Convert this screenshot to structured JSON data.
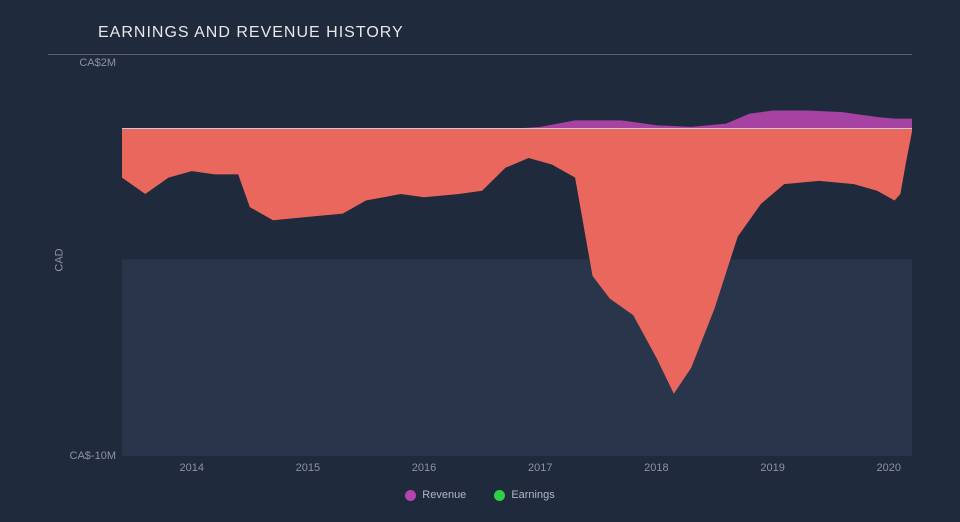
{
  "title": "EARNINGS AND REVENUE HISTORY",
  "background_color": "#1f2a3c",
  "band_color": "#28354a",
  "text_color": "#e8e8e8",
  "muted_text": "#8a93a3",
  "zero_line_color": "#c5cbd4",
  "y_axis": {
    "label": "CAD",
    "min": -10,
    "max": 2,
    "ticks": [
      {
        "v": 2,
        "label": "CA$2M"
      },
      {
        "v": -10,
        "label": "CA$-10M"
      }
    ]
  },
  "x_axis": {
    "min": 2013.4,
    "max": 2020.2,
    "ticks": [
      2014,
      2015,
      2016,
      2017,
      2018,
      2019,
      2020
    ]
  },
  "series": {
    "revenue": {
      "label": "Revenue",
      "color": "#b445ad",
      "fill_opacity": 0.9,
      "points": [
        [
          2013.4,
          0
        ],
        [
          2014.0,
          0
        ],
        [
          2015.0,
          0
        ],
        [
          2016.0,
          0
        ],
        [
          2016.8,
          0
        ],
        [
          2017.0,
          0.05
        ],
        [
          2017.3,
          0.25
        ],
        [
          2017.7,
          0.25
        ],
        [
          2018.0,
          0.1
        ],
        [
          2018.3,
          0.05
        ],
        [
          2018.6,
          0.15
        ],
        [
          2018.8,
          0.45
        ],
        [
          2019.0,
          0.55
        ],
        [
          2019.3,
          0.55
        ],
        [
          2019.6,
          0.5
        ],
        [
          2019.9,
          0.35
        ],
        [
          2020.05,
          0.3
        ],
        [
          2020.2,
          0.3
        ]
      ]
    },
    "earnings": {
      "label": "Earnings",
      "color": "#2fcf4a",
      "negative_fill": "#f46a5f",
      "fill_opacity": 0.95,
      "points": [
        [
          2013.4,
          -1.5
        ],
        [
          2013.6,
          -2.0
        ],
        [
          2013.8,
          -1.5
        ],
        [
          2014.0,
          -1.3
        ],
        [
          2014.2,
          -1.4
        ],
        [
          2014.4,
          -1.4
        ],
        [
          2014.5,
          -2.4
        ],
        [
          2014.7,
          -2.8
        ],
        [
          2015.0,
          -2.7
        ],
        [
          2015.3,
          -2.6
        ],
        [
          2015.5,
          -2.2
        ],
        [
          2015.8,
          -2.0
        ],
        [
          2016.0,
          -2.1
        ],
        [
          2016.3,
          -2.0
        ],
        [
          2016.5,
          -1.9
        ],
        [
          2016.7,
          -1.2
        ],
        [
          2016.9,
          -0.9
        ],
        [
          2017.1,
          -1.1
        ],
        [
          2017.3,
          -1.5
        ],
        [
          2017.45,
          -4.5
        ],
        [
          2017.6,
          -5.2
        ],
        [
          2017.8,
          -5.7
        ],
        [
          2018.0,
          -7.0
        ],
        [
          2018.15,
          -8.1
        ],
        [
          2018.3,
          -7.3
        ],
        [
          2018.5,
          -5.5
        ],
        [
          2018.7,
          -3.3
        ],
        [
          2018.9,
          -2.3
        ],
        [
          2019.1,
          -1.7
        ],
        [
          2019.4,
          -1.6
        ],
        [
          2019.7,
          -1.7
        ],
        [
          2019.9,
          -1.9
        ],
        [
          2020.05,
          -2.2
        ],
        [
          2020.1,
          -2.0
        ],
        [
          2020.15,
          -1.0
        ],
        [
          2020.2,
          -0.1
        ]
      ]
    }
  },
  "legend": [
    {
      "key": "revenue",
      "label": "Revenue",
      "color": "#b445ad"
    },
    {
      "key": "earnings",
      "label": "Earnings",
      "color": "#2fcf4a"
    }
  ]
}
